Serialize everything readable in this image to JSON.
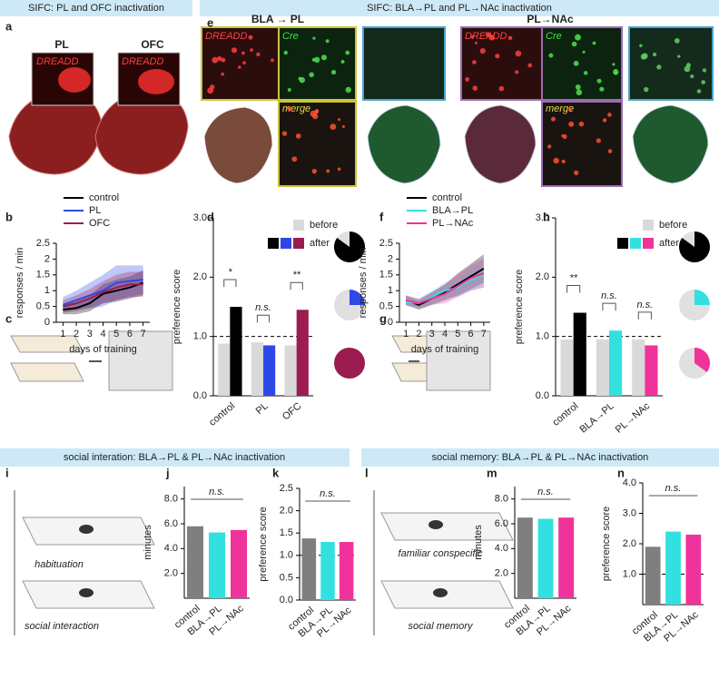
{
  "banners": [
    "SIFC: PL and OFC inactivation",
    "SIFC: BLA→PL and PL→NAc inactivation",
    "social interation: BLA→PL & PL→NAc inactivation",
    "social memory: BLA→PL & PL→NAc inactivation"
  ],
  "panel_letters": [
    "a",
    "b",
    "c",
    "d",
    "e",
    "f",
    "g",
    "h",
    "i",
    "j",
    "k",
    "l",
    "m",
    "n"
  ],
  "image_labels": [
    "PL",
    "OFC",
    "DREADD",
    "DREADD",
    "BLA → PL",
    "PL→NAc",
    "DREADD",
    "Cre",
    "merge",
    "DREADD",
    "Cre",
    "merge"
  ],
  "schematic_labels": [
    "habituation",
    "social interaction",
    "familiar conspecific",
    "social memory"
  ],
  "chart_data": [
    {
      "type": "line",
      "ylabel": "responses / min",
      "xlabel": "days of training",
      "x": [
        1,
        2,
        3,
        4,
        5,
        6,
        7
      ],
      "xlim": [
        0.5,
        7.5
      ],
      "xticks": [
        1,
        2,
        3,
        4,
        5,
        6,
        7
      ],
      "ylim": [
        0,
        2.5
      ],
      "yticks": [
        0,
        0.5,
        1,
        1.5,
        2,
        2.5
      ],
      "series": [
        {
          "name": "control",
          "color": "#000000",
          "values": [
            0.4,
            0.45,
            0.6,
            0.9,
            1.0,
            1.1,
            1.25
          ],
          "errors": [
            0.15,
            0.2,
            0.25,
            0.3,
            0.35,
            0.35,
            0.4
          ]
        },
        {
          "name": "PL",
          "color": "#2e48e8",
          "values": [
            0.55,
            0.7,
            0.85,
            1.0,
            1.25,
            1.3,
            1.35
          ],
          "errors": [
            0.25,
            0.3,
            0.4,
            0.5,
            0.55,
            0.5,
            0.45
          ]
        },
        {
          "name": "OFC",
          "color": "#9b1d4f",
          "values": [
            0.5,
            0.6,
            0.75,
            0.95,
            1.1,
            1.2,
            1.2
          ],
          "errors": [
            0.2,
            0.25,
            0.3,
            0.35,
            0.4,
            0.4,
            0.4
          ]
        }
      ]
    },
    {
      "type": "bar",
      "ylabel": "preference score",
      "categories": [
        "control",
        "PL",
        "OFC"
      ],
      "ylim": [
        0,
        3
      ],
      "yticks": [
        {
          "value": 0,
          "label": "0.0"
        },
        {
          "value": 1,
          "label": "1.0"
        },
        {
          "value": 2,
          "label": "2.0"
        },
        {
          "value": 3,
          "label": "3.0"
        }
      ],
      "reference_line": 1,
      "series": [
        {
          "name": "before",
          "color": "#d9d9d9",
          "values": [
            0.88,
            0.9,
            0.85
          ]
        },
        {
          "name": "after",
          "colors": [
            "#000000",
            "#2e48e8",
            "#9b1d4f"
          ],
          "values": [
            1.5,
            0.85,
            1.45
          ]
        }
      ],
      "annotations": [
        "*",
        "n.s.",
        "**"
      ],
      "pie_values": [
        85,
        25,
        100
      ]
    },
    {
      "type": "line",
      "ylabel": "responses / min",
      "xlabel": "days of training",
      "x": [
        1,
        2,
        3,
        4,
        5,
        6,
        7
      ],
      "xlim": [
        0.5,
        7.5
      ],
      "xticks": [
        1,
        2,
        3,
        4,
        5,
        6,
        7
      ],
      "ylim": [
        0,
        2.5
      ],
      "yticks": [
        0,
        0.5,
        1,
        1.5,
        2,
        2.5
      ],
      "series": [
        {
          "name": "control",
          "color": "#000000",
          "values": [
            0.7,
            0.55,
            0.75,
            0.95,
            1.2,
            1.45,
            1.7
          ],
          "errors": [
            0.15,
            0.15,
            0.2,
            0.25,
            0.35,
            0.4,
            0.45
          ]
        },
        {
          "name": "BLA→PL",
          "color": "#33e0e0",
          "values": [
            0.65,
            0.6,
            0.8,
            1.0,
            1.1,
            1.35,
            1.5
          ],
          "errors": [
            0.15,
            0.15,
            0.2,
            0.25,
            0.3,
            0.35,
            0.4
          ]
        },
        {
          "name": "PL→NAc",
          "color": "#f0339a",
          "values": [
            0.7,
            0.6,
            0.75,
            0.9,
            1.15,
            1.4,
            1.55
          ],
          "errors": [
            0.15,
            0.15,
            0.2,
            0.3,
            0.35,
            0.4,
            0.45
          ]
        }
      ]
    },
    {
      "type": "bar",
      "ylabel": "preference score",
      "categories": [
        "control",
        "BLA→PL",
        "PL→NAc"
      ],
      "ylim": [
        0,
        3
      ],
      "yticks": [
        {
          "value": 0,
          "label": "0.0"
        },
        {
          "value": 1,
          "label": "1.0"
        },
        {
          "value": 2,
          "label": "2.0"
        },
        {
          "value": 3,
          "label": "3.0"
        }
      ],
      "reference_line": 1,
      "series": [
        {
          "name": "before",
          "color": "#d9d9d9",
          "values": [
            0.95,
            0.95,
            0.95
          ]
        },
        {
          "name": "after",
          "colors": [
            "#000000",
            "#33e0e0",
            "#f0339a"
          ],
          "values": [
            1.4,
            1.1,
            0.85
          ]
        }
      ],
      "annotations": [
        "**",
        "n.s.",
        "n.s."
      ],
      "pie_values": [
        85,
        25,
        35
      ]
    },
    {
      "type": "bar",
      "ylabel": "minutes",
      "categories": [
        "control",
        "BLA→PL",
        "PL→NAc"
      ],
      "values": [
        5.8,
        5.3,
        5.5
      ],
      "colors": [
        "#7f7f7f",
        "#33e0e0",
        "#f0339a"
      ],
      "ylim": [
        0,
        9
      ],
      "yticks": [
        {
          "value": 2,
          "label": "2.0"
        },
        {
          "value": 4,
          "label": "4.0"
        },
        {
          "value": 6,
          "label": "6.0"
        },
        {
          "value": 8,
          "label": "8.0"
        }
      ],
      "annotation": "n.s."
    },
    {
      "type": "bar",
      "ylabel": "preference score",
      "categories": [
        "control",
        "BLA→PL",
        "PL→NAc"
      ],
      "values": [
        1.38,
        1.3,
        1.3
      ],
      "colors": [
        "#7f7f7f",
        "#33e0e0",
        "#f0339a"
      ],
      "ylim": [
        0,
        2.5
      ],
      "yticks": [
        {
          "value": 0,
          "label": "0.0"
        },
        0.5,
        {
          "value": 1,
          "label": "1.0"
        },
        1.5,
        {
          "value": 2,
          "label": "2.0"
        },
        2.5
      ],
      "reference_line": 1,
      "annotation": "n.s."
    },
    {
      "type": "bar",
      "ylabel": "minutes",
      "categories": [
        "control",
        "BLA→PL",
        "PL→NAc"
      ],
      "values": [
        6.5,
        6.4,
        6.5
      ],
      "colors": [
        "#7f7f7f",
        "#33e0e0",
        "#f0339a"
      ],
      "ylim": [
        0,
        9
      ],
      "yticks": [
        {
          "value": 2,
          "label": "2.0"
        },
        {
          "value": 4,
          "label": "4.0"
        },
        {
          "value": 6,
          "label": "6.0"
        },
        {
          "value": 8,
          "label": "8.0"
        }
      ],
      "annotation": "n.s."
    },
    {
      "type": "bar",
      "ylabel": "preference score",
      "categories": [
        "control",
        "BLA→PL",
        "PL→NAc"
      ],
      "values": [
        1.9,
        2.4,
        2.3
      ],
      "colors": [
        "#7f7f7f",
        "#33e0e0",
        "#f0339a"
      ],
      "ylim": [
        0,
        4
      ],
      "yticks": [
        {
          "value": 1,
          "label": "1.0"
        },
        {
          "value": 2,
          "label": "2.0"
        },
        {
          "value": 3,
          "label": "3.0"
        },
        {
          "value": 4,
          "label": "4.0"
        }
      ],
      "reference_line": 1,
      "annotation": "n.s."
    }
  ]
}
